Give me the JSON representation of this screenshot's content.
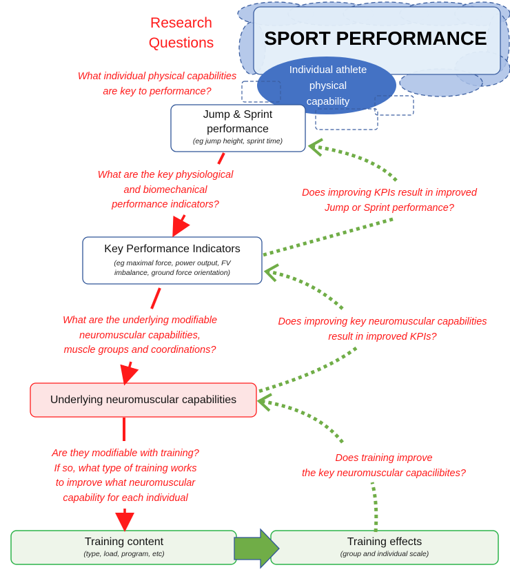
{
  "header": {
    "research_questions": [
      "Research",
      "Questions"
    ]
  },
  "top": {
    "sport_performance": "SPORT PERFORMANCE",
    "athlete": [
      "Individual athlete",
      "physical",
      "capability"
    ]
  },
  "boxes": {
    "jump": {
      "title": [
        "Jump & Sprint",
        "performance"
      ],
      "sub": "(eg jump height, sprint time)"
    },
    "kpi": {
      "title": "Key Performance Indicators",
      "sub": [
        "(eg maximal force, power output, FV",
        "imbalance, ground force orientation)"
      ]
    },
    "neuro": {
      "title": "Underlying neuromuscular capabilities"
    },
    "content": {
      "title": "Training content",
      "sub": "(type, load, program, etc)"
    },
    "effects": {
      "title": "Training effects",
      "sub": "(group and individual scale)"
    }
  },
  "questions": {
    "q1": [
      "What individual physical capabilities",
      "are key to performance?"
    ],
    "q2": [
      "What are the key physiological",
      "and biomechanical",
      "performance indicators?"
    ],
    "q3": [
      "What are the underlying modifiable",
      "neuromuscular capabilities,",
      "muscle groups and coordinations?"
    ],
    "q4": [
      "Are they modifiable with training?",
      "If so, what type of training works",
      "to improve what neuromuscular",
      "capability for each individual"
    ],
    "q5": [
      "Does improving KPIs result in improved",
      "Jump or Sprint performance?"
    ],
    "q6": [
      "Does improving key neuromuscular capabilities",
      "result in improved KPIs?"
    ],
    "q7": [
      "Does training improve",
      "the key neuromuscular capacilibites?"
    ]
  },
  "colors": {
    "red": "#ff1a1a",
    "blue": "#4472c4",
    "green_dotted": "#70ad47",
    "green_border": "#2db34a"
  }
}
